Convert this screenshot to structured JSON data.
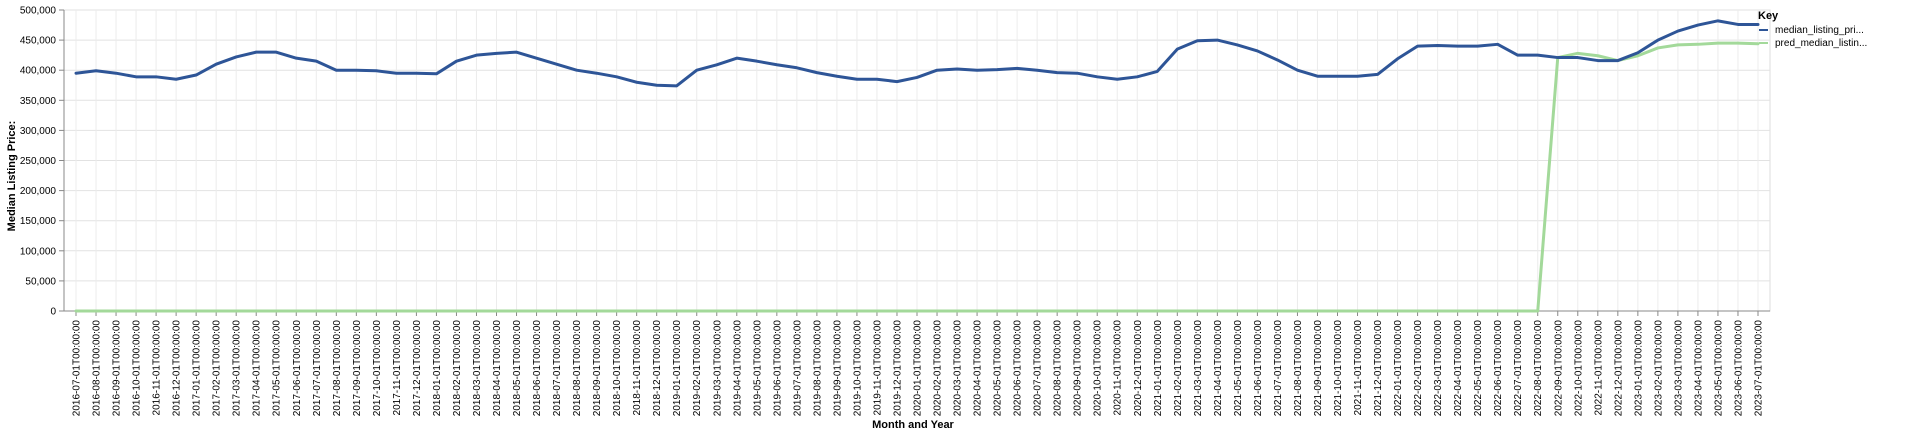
{
  "chart_data": {
    "type": "line",
    "xlabel": "Month and Year",
    "ylabel": "Median Listing Price:",
    "ylim": [
      0,
      500000
    ],
    "y_ticks": [
      "0",
      "50,000",
      "100,000",
      "150,000",
      "200,000",
      "250,000",
      "300,000",
      "350,000",
      "400,000",
      "450,000",
      "500,000"
    ],
    "grid": true,
    "legend": {
      "title": "Key",
      "placement": "right"
    },
    "categories": [
      "2016-07-01T00:00:00",
      "2016-08-01T00:00:00",
      "2016-09-01T00:00:00",
      "2016-10-01T00:00:00",
      "2016-11-01T00:00:00",
      "2016-12-01T00:00:00",
      "2017-01-01T00:00:00",
      "2017-02-01T00:00:00",
      "2017-03-01T00:00:00",
      "2017-04-01T00:00:00",
      "2017-05-01T00:00:00",
      "2017-06-01T00:00:00",
      "2017-07-01T00:00:00",
      "2017-08-01T00:00:00",
      "2017-09-01T00:00:00",
      "2017-10-01T00:00:00",
      "2017-11-01T00:00:00",
      "2017-12-01T00:00:00",
      "2018-01-01T00:00:00",
      "2018-02-01T00:00:00",
      "2018-03-01T00:00:00",
      "2018-04-01T00:00:00",
      "2018-05-01T00:00:00",
      "2018-06-01T00:00:00",
      "2018-07-01T00:00:00",
      "2018-08-01T00:00:00",
      "2018-09-01T00:00:00",
      "2018-10-01T00:00:00",
      "2018-11-01T00:00:00",
      "2018-12-01T00:00:00",
      "2019-01-01T00:00:00",
      "2019-02-01T00:00:00",
      "2019-03-01T00:00:00",
      "2019-04-01T00:00:00",
      "2019-05-01T00:00:00",
      "2019-06-01T00:00:00",
      "2019-07-01T00:00:00",
      "2019-08-01T00:00:00",
      "2019-09-01T00:00:00",
      "2019-10-01T00:00:00",
      "2019-11-01T00:00:00",
      "2019-12-01T00:00:00",
      "2020-01-01T00:00:00",
      "2020-02-01T00:00:00",
      "2020-03-01T00:00:00",
      "2020-04-01T00:00:00",
      "2020-05-01T00:00:00",
      "2020-06-01T00:00:00",
      "2020-07-01T00:00:00",
      "2020-08-01T00:00:00",
      "2020-09-01T00:00:00",
      "2020-10-01T00:00:00",
      "2020-11-01T00:00:00",
      "2020-12-01T00:00:00",
      "2021-01-01T00:00:00",
      "2021-02-01T00:00:00",
      "2021-03-01T00:00:00",
      "2021-04-01T00:00:00",
      "2021-05-01T00:00:00",
      "2021-06-01T00:00:00",
      "2021-07-01T00:00:00",
      "2021-08-01T00:00:00",
      "2021-09-01T00:00:00",
      "2021-10-01T00:00:00",
      "2021-11-01T00:00:00",
      "2021-12-01T00:00:00",
      "2022-01-01T00:00:00",
      "2022-02-01T00:00:00",
      "2022-03-01T00:00:00",
      "2022-04-01T00:00:00",
      "2022-05-01T00:00:00",
      "2022-06-01T00:00:00",
      "2022-07-01T00:00:00",
      "2022-08-01T00:00:00",
      "2022-09-01T00:00:00",
      "2022-10-01T00:00:00",
      "2022-11-01T00:00:00",
      "2022-12-01T00:00:00",
      "2023-01-01T00:00:00",
      "2023-02-01T00:00:00",
      "2023-03-01T00:00:00",
      "2023-04-01T00:00:00",
      "2023-05-01T00:00:00",
      "2023-06-01T00:00:00",
      "2023-07-01T00:00:00"
    ],
    "series": [
      {
        "name": "median_listing_pri...",
        "color": "#2e5597",
        "values": [
          395000,
          399000,
          395000,
          389000,
          389000,
          385000,
          392000,
          410000,
          422000,
          430000,
          430000,
          420000,
          415000,
          400000,
          400000,
          399000,
          395000,
          395000,
          394000,
          415000,
          425000,
          428000,
          430000,
          420000,
          410000,
          400000,
          395000,
          389000,
          380000,
          375000,
          374000,
          400000,
          409000,
          420000,
          415000,
          409000,
          404000,
          396000,
          390000,
          385000,
          385000,
          381000,
          388000,
          400000,
          402000,
          400000,
          401000,
          403000,
          400000,
          396000,
          395000,
          389000,
          385000,
          389000,
          398000,
          435000,
          449000,
          450000,
          442000,
          432000,
          417000,
          400000,
          390000,
          390000,
          390000,
          393000,
          419000,
          440000,
          441000,
          440000,
          440000,
          443000,
          425000,
          425000,
          421000,
          421000,
          416000,
          416000,
          429000,
          450000,
          465000,
          475000,
          482000,
          476000,
          476000
        ]
      },
      {
        "name": "pred_median_listin...",
        "color": "#a3d99a",
        "values": [
          0,
          0,
          0,
          0,
          0,
          0,
          0,
          0,
          0,
          0,
          0,
          0,
          0,
          0,
          0,
          0,
          0,
          0,
          0,
          0,
          0,
          0,
          0,
          0,
          0,
          0,
          0,
          0,
          0,
          0,
          0,
          0,
          0,
          0,
          0,
          0,
          0,
          0,
          0,
          0,
          0,
          0,
          0,
          0,
          0,
          0,
          0,
          0,
          0,
          0,
          0,
          0,
          0,
          0,
          0,
          0,
          0,
          0,
          0,
          0,
          0,
          0,
          0,
          0,
          0,
          0,
          0,
          0,
          0,
          0,
          0,
          0,
          0,
          0,
          421000,
          428000,
          424000,
          416000,
          424000,
          437000,
          442000,
          443000,
          445000,
          445000,
          444000
        ]
      }
    ]
  }
}
